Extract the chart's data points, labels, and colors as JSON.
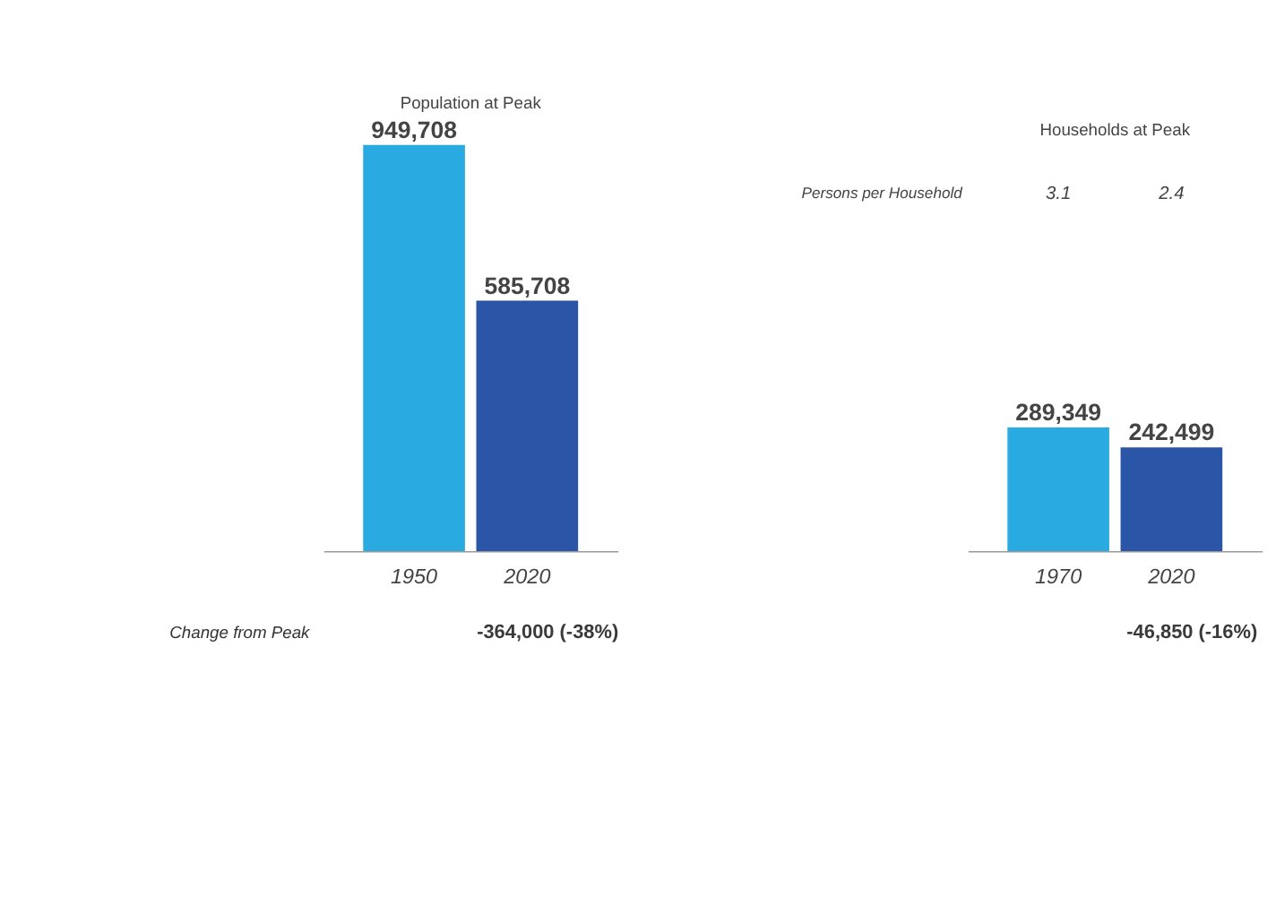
{
  "chart_data": [
    {
      "type": "bar",
      "title": "Population at Peak",
      "categories": [
        "1950",
        "2020"
      ],
      "values": [
        949708,
        585708
      ],
      "colors": [
        "#29abe2",
        "#2b55a6"
      ],
      "value_labels": [
        "949,708",
        "585,708"
      ],
      "annotations": [
        "Change from Peak",
        "-364,000 (-38%)"
      ]
    },
    {
      "type": "bar",
      "title": "Households at Peak",
      "categories": [
        "1970",
        "2020"
      ],
      "values": [
        289349,
        242499
      ],
      "colors": [
        "#29abe2",
        "#2b55a6"
      ],
      "value_labels": [
        "289,349",
        "242,499"
      ],
      "annotations": [
        "Persons per Household",
        "3.1",
        "2.4",
        "-46,850 (-16%)"
      ]
    }
  ]
}
